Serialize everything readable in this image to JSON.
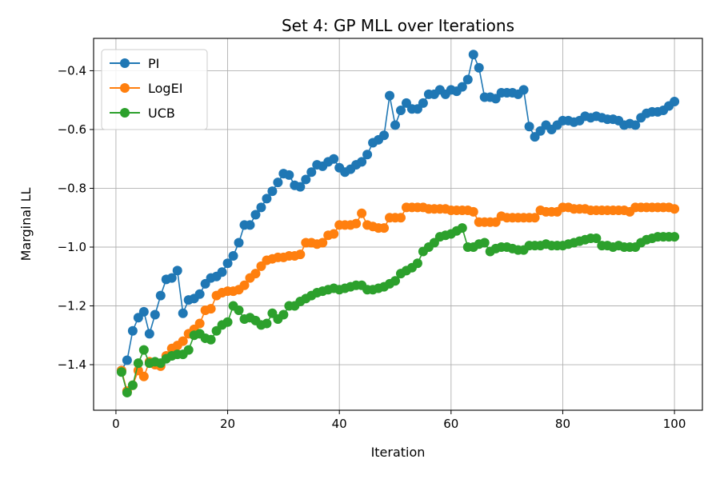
{
  "chart_data": {
    "type": "line",
    "title": "Set 4: GP MLL over Iterations",
    "xlabel": "Iteration",
    "ylabel": "Marginal LL",
    "xlim": [
      -4,
      105
    ],
    "ylim": [
      -1.555,
      -0.29
    ],
    "xticks": [
      0,
      20,
      40,
      60,
      80,
      100
    ],
    "xtick_labels": [
      "0",
      "20",
      "40",
      "60",
      "80",
      "100"
    ],
    "yticks": [
      -1.4,
      -1.2,
      -1.0,
      -0.8,
      -0.6,
      -0.4
    ],
    "ytick_labels": [
      "−1.4",
      "−1.2",
      "−1.0",
      "−0.8",
      "−0.6",
      "−0.4"
    ],
    "grid": true,
    "legend_position": "top-left",
    "x": [
      1,
      2,
      3,
      4,
      5,
      6,
      7,
      8,
      9,
      10,
      11,
      12,
      13,
      14,
      15,
      16,
      17,
      18,
      19,
      20,
      21,
      22,
      23,
      24,
      25,
      26,
      27,
      28,
      29,
      30,
      31,
      32,
      33,
      34,
      35,
      36,
      37,
      38,
      39,
      40,
      41,
      42,
      43,
      44,
      45,
      46,
      47,
      48,
      49,
      50,
      51,
      52,
      53,
      54,
      55,
      56,
      57,
      58,
      59,
      60,
      61,
      62,
      63,
      64,
      65,
      66,
      67,
      68,
      69,
      70,
      71,
      72,
      73,
      74,
      75,
      76,
      77,
      78,
      79,
      80,
      81,
      82,
      83,
      84,
      85,
      86,
      87,
      88,
      89,
      90,
      91,
      92,
      93,
      94,
      95,
      96,
      97,
      98,
      99,
      100
    ],
    "series": [
      {
        "name": "PI",
        "color": "#1f77b4",
        "values": [
          -1.42,
          -1.385,
          -1.285,
          -1.24,
          -1.22,
          -1.295,
          -1.23,
          -1.165,
          -1.11,
          -1.105,
          -1.08,
          -1.225,
          -1.18,
          -1.175,
          -1.16,
          -1.125,
          -1.105,
          -1.1,
          -1.085,
          -1.055,
          -1.03,
          -0.985,
          -0.925,
          -0.925,
          -0.89,
          -0.865,
          -0.835,
          -0.81,
          -0.78,
          -0.75,
          -0.755,
          -0.79,
          -0.795,
          -0.77,
          -0.745,
          -0.72,
          -0.725,
          -0.71,
          -0.7,
          -0.73,
          -0.745,
          -0.735,
          -0.72,
          -0.71,
          -0.685,
          -0.645,
          -0.635,
          -0.62,
          -0.485,
          -0.585,
          -0.535,
          -0.51,
          -0.53,
          -0.53,
          -0.51,
          -0.48,
          -0.48,
          -0.465,
          -0.48,
          -0.465,
          -0.47,
          -0.455,
          -0.43,
          -0.345,
          -0.39,
          -0.49,
          -0.49,
          -0.495,
          -0.475,
          -0.475,
          -0.475,
          -0.48,
          -0.465,
          -0.59,
          -0.625,
          -0.605,
          -0.585,
          -0.6,
          -0.585,
          -0.57,
          -0.57,
          -0.575,
          -0.57,
          -0.555,
          -0.56,
          -0.555,
          -0.56,
          -0.565,
          -0.565,
          -0.57,
          -0.585,
          -0.58,
          -0.585,
          -0.56,
          -0.545,
          -0.54,
          -0.54,
          -0.535,
          -0.52,
          -0.505
        ]
      },
      {
        "name": "LogEI",
        "color": "#ff7f0e",
        "values": [
          -1.42,
          -1.49,
          -1.47,
          -1.42,
          -1.44,
          -1.39,
          -1.4,
          -1.405,
          -1.37,
          -1.345,
          -1.335,
          -1.32,
          -1.295,
          -1.28,
          -1.26,
          -1.215,
          -1.21,
          -1.165,
          -1.155,
          -1.15,
          -1.15,
          -1.145,
          -1.13,
          -1.105,
          -1.09,
          -1.065,
          -1.045,
          -1.04,
          -1.035,
          -1.035,
          -1.03,
          -1.03,
          -1.025,
          -0.985,
          -0.985,
          -0.99,
          -0.985,
          -0.96,
          -0.955,
          -0.925,
          -0.925,
          -0.925,
          -0.92,
          -0.885,
          -0.925,
          -0.93,
          -0.935,
          -0.935,
          -0.9,
          -0.9,
          -0.9,
          -0.865,
          -0.865,
          -0.865,
          -0.865,
          -0.87,
          -0.87,
          -0.87,
          -0.87,
          -0.875,
          -0.875,
          -0.875,
          -0.875,
          -0.88,
          -0.915,
          -0.915,
          -0.915,
          -0.915,
          -0.895,
          -0.9,
          -0.9,
          -0.9,
          -0.9,
          -0.9,
          -0.9,
          -0.875,
          -0.88,
          -0.88,
          -0.88,
          -0.865,
          -0.865,
          -0.87,
          -0.87,
          -0.87,
          -0.875,
          -0.875,
          -0.875,
          -0.875,
          -0.875,
          -0.875,
          -0.875,
          -0.88,
          -0.865,
          -0.865,
          -0.865,
          -0.865,
          -0.865,
          -0.865,
          -0.865,
          -0.87
        ]
      },
      {
        "name": "UCB",
        "color": "#2ca02c",
        "values": [
          -1.425,
          -1.495,
          -1.47,
          -1.395,
          -1.35,
          -1.395,
          -1.39,
          -1.395,
          -1.38,
          -1.37,
          -1.365,
          -1.365,
          -1.35,
          -1.3,
          -1.295,
          -1.31,
          -1.315,
          -1.285,
          -1.265,
          -1.255,
          -1.2,
          -1.215,
          -1.245,
          -1.24,
          -1.25,
          -1.265,
          -1.26,
          -1.225,
          -1.245,
          -1.23,
          -1.2,
          -1.2,
          -1.185,
          -1.175,
          -1.165,
          -1.155,
          -1.15,
          -1.145,
          -1.14,
          -1.145,
          -1.14,
          -1.135,
          -1.13,
          -1.13,
          -1.145,
          -1.145,
          -1.14,
          -1.135,
          -1.125,
          -1.115,
          -1.09,
          -1.08,
          -1.07,
          -1.055,
          -1.015,
          -1.0,
          -0.985,
          -0.965,
          -0.96,
          -0.955,
          -0.945,
          -0.935,
          -1.0,
          -1.0,
          -0.99,
          -0.985,
          -1.015,
          -1.005,
          -1.0,
          -1.0,
          -1.005,
          -1.01,
          -1.01,
          -0.995,
          -0.995,
          -0.995,
          -0.99,
          -0.995,
          -0.995,
          -0.995,
          -0.99,
          -0.985,
          -0.98,
          -0.975,
          -0.97,
          -0.97,
          -0.995,
          -0.995,
          -1.0,
          -0.995,
          -1.0,
          -1.0,
          -1.0,
          -0.985,
          -0.975,
          -0.97,
          -0.965,
          -0.965,
          -0.965,
          -0.965
        ]
      }
    ]
  }
}
